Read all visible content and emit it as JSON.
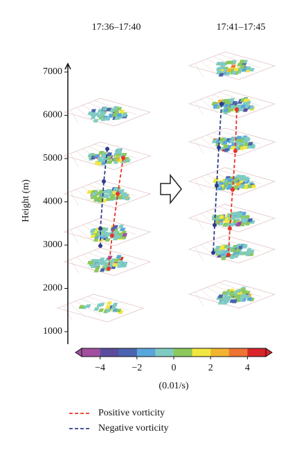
{
  "panel_titles": [
    "17:36–17:40",
    "17:41–17:45"
  ],
  "height_axis": {
    "label": "Height (m)",
    "ylim": [
      1000,
      7000
    ],
    "yticks": [
      1000,
      2000,
      3000,
      4000,
      5000,
      6000,
      7000
    ]
  },
  "colorbar": {
    "label": "(0.01/s)",
    "lim": [
      -5,
      5
    ],
    "ticks": [
      {
        "value": -4,
        "label": "−4"
      },
      {
        "value": -2,
        "label": "−2"
      },
      0,
      2,
      4
    ],
    "colors": [
      "#a24fa0",
      "#5b4d9e",
      "#4a64b0",
      "#5aa6dc",
      "#7fcbc2",
      "#8cc85c",
      "#f2e640",
      "#f2b430",
      "#ee7432",
      "#d8252a"
    ]
  },
  "legend": [
    {
      "name": "Positive vorticity",
      "color": "#e8332a"
    },
    {
      "name": "Negative vorticity",
      "color": "#2e3a8c"
    }
  ]
}
